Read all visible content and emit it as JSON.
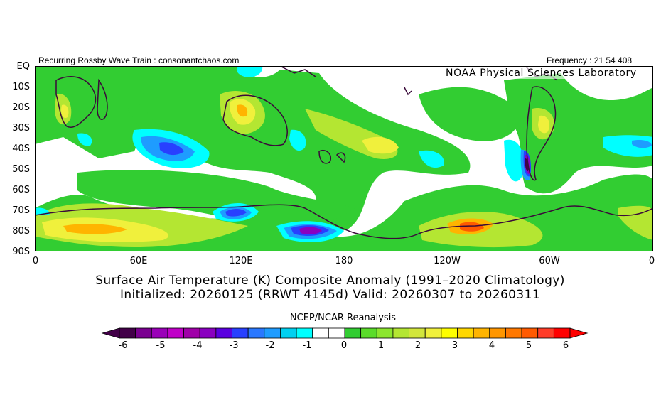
{
  "header": {
    "left": "Recurring Rossby Wave Train : consonantchaos.com",
    "right": "Frequency : 21 54 408",
    "lab": "NOAA Physical Sciences Laboratory"
  },
  "map": {
    "projection": "cylindrical equidistant, 0–360°E, EQ to 90°S",
    "lat_labels": [
      "EQ",
      "10S",
      "20S",
      "30S",
      "40S",
      "50S",
      "60S",
      "70S",
      "80S",
      "90S"
    ],
    "lon_labels": [
      "0",
      "60E",
      "120E",
      "180",
      "120W",
      "60W",
      "0"
    ]
  },
  "titles": {
    "line1": "Surface Air Temperature (K) Composite Anomaly (1991–2020 Climatology)",
    "line2": "Initialized: 20260125 (RRWT 4145d) Valid: 20260307 to 20260311"
  },
  "colorbar": {
    "label": "NCEP/NCAR Reanalysis",
    "ticks": [
      "-6",
      "-5",
      "-4",
      "-3",
      "-2",
      "-1",
      "0",
      "1",
      "2",
      "3",
      "4",
      "5",
      "6"
    ],
    "colors": [
      "#420048",
      "#7a0090",
      "#9a00b8",
      "#c000c8",
      "#a000a8",
      "#8a00c0",
      "#5a00e0",
      "#2840ff",
      "#2a78ff",
      "#1e9cff",
      "#00d0f0",
      "#00ffff",
      "#ffffff",
      "#ffffff",
      "#32cd32",
      "#5adc2a",
      "#8ce62e",
      "#b4e632",
      "#d2e63c",
      "#f0f03c",
      "#ffff00",
      "#ffd700",
      "#ffb400",
      "#ff9600",
      "#ff7800",
      "#ff5a00",
      "#ff3c28",
      "#ff0000"
    ]
  }
}
